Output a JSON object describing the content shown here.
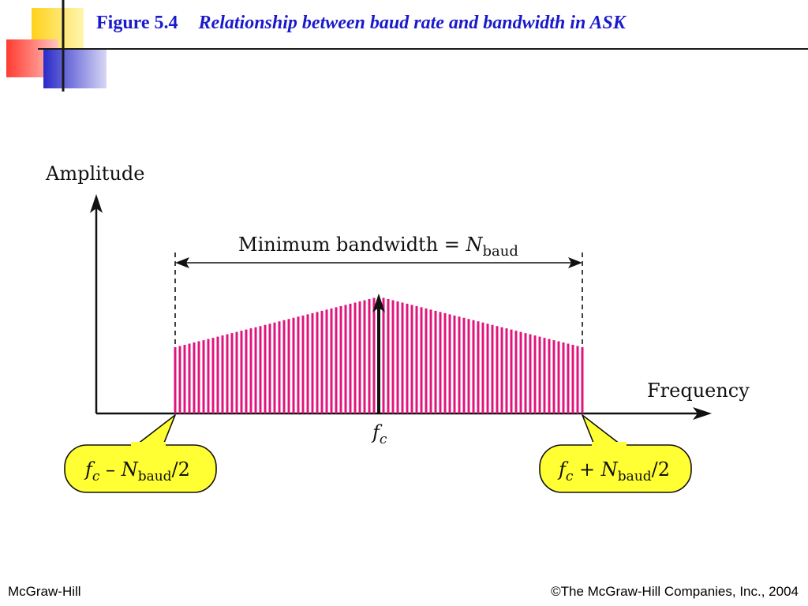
{
  "slide": {
    "figure_number": "Figure 5.4",
    "caption": "Relationship between baud rate and bandwidth in ASK",
    "footer_left": "McGraw-Hill",
    "footer_right": "©The McGraw-Hill Companies, Inc., 2004"
  },
  "diagram": {
    "y_axis_label": "Amplitude",
    "x_axis_label": "Frequency",
    "bandwidth_label_main": "Minimum bandwidth = ",
    "bandwidth_label_symbol": "N",
    "bandwidth_label_sub": "baud",
    "center_symbol": "f",
    "center_sub": "c",
    "left_bubble": {
      "f": "f",
      "f_sub": "c",
      "op": " – ",
      "n": "N",
      "n_sub": "baud",
      "tail": "/2"
    },
    "right_bubble": {
      "f": "f",
      "f_sub": "c",
      "op": " + ",
      "n": "N",
      "n_sub": "baud",
      "tail": "/2"
    },
    "colors": {
      "spectrum": "#e0147c",
      "bubble_fill": "#ffff33",
      "title": "#1a1acc",
      "logo_yellow": "#ffd21a",
      "logo_red": "#ff3b30",
      "logo_blue": "#3333cc"
    }
  }
}
